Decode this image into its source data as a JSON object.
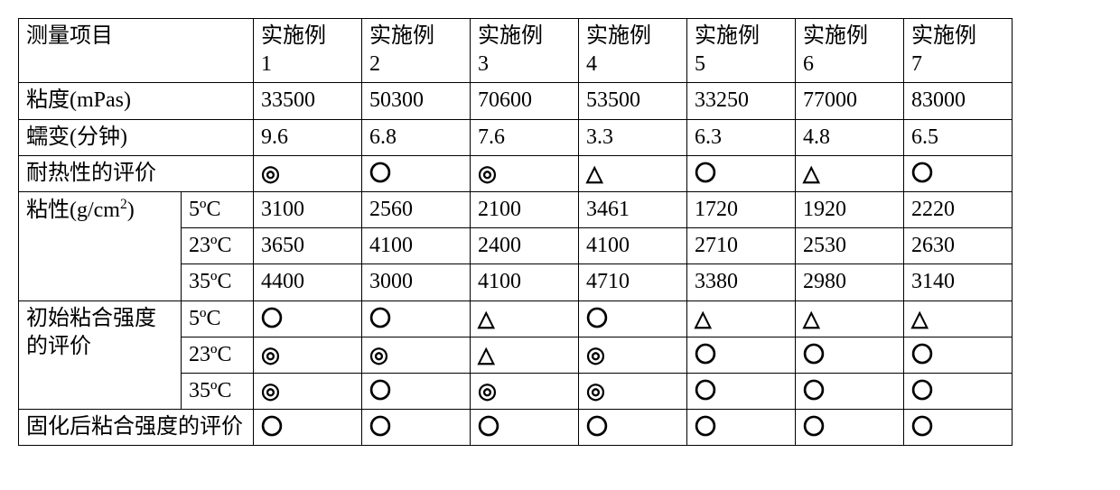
{
  "header": {
    "row_label": "测量项目",
    "columns": [
      "实施例\n1",
      "实施例\n2",
      "实施例\n3",
      "实施例\n4",
      "实施例\n5",
      "实施例\n6",
      "实施例\n7"
    ]
  },
  "symbols": {
    "double_circle": "◎",
    "circle": "〇",
    "triangle": "△"
  },
  "rows": [
    {
      "label": "粘度(mPas)",
      "sub": null,
      "values": [
        "33500",
        "50300",
        "70600",
        "53500",
        "33250",
        "77000",
        "83000"
      ]
    },
    {
      "label": "蠕变(分钟)",
      "sub": null,
      "values": [
        "9.6",
        "6.8",
        "7.6",
        "3.3",
        "6.3",
        "4.8",
        "6.5"
      ]
    },
    {
      "label": "耐热性的评价",
      "sub": null,
      "values": [
        "◎",
        "〇",
        "◎",
        "△",
        "〇",
        "△",
        "〇"
      ]
    },
    {
      "label": "粘性(g/cm²)",
      "sub": "5ºC",
      "label_html": "粘性(g/cm<sup>2</sup>)",
      "values": [
        "3100",
        "2560",
        "2100",
        "3461",
        "1720",
        "1920",
        "2220"
      ],
      "rowspan": 3
    },
    {
      "label": null,
      "sub": "23ºC",
      "values": [
        "3650",
        "4100",
        "2400",
        "4100",
        "2710",
        "2530",
        "2630"
      ]
    },
    {
      "label": null,
      "sub": "35ºC",
      "values": [
        "4400",
        "3000",
        "4100",
        "4710",
        "3380",
        "2980",
        "3140"
      ]
    },
    {
      "label": "初始粘合强度的评价",
      "sub": "5ºC",
      "values": [
        "〇",
        "〇",
        "△",
        "〇",
        "△",
        "△",
        "△"
      ],
      "rowspan": 3
    },
    {
      "label": null,
      "sub": "23ºC",
      "values": [
        "◎",
        "◎",
        "△",
        "◎",
        "〇",
        "〇",
        "〇"
      ]
    },
    {
      "label": null,
      "sub": "35ºC",
      "values": [
        "◎",
        "〇",
        "◎",
        "◎",
        "〇",
        "〇",
        "〇"
      ]
    },
    {
      "label": "固化后粘合强度的评价",
      "sub": null,
      "values": [
        "〇",
        "〇",
        "〇",
        "〇",
        "〇",
        "〇",
        "〇"
      ]
    }
  ]
}
